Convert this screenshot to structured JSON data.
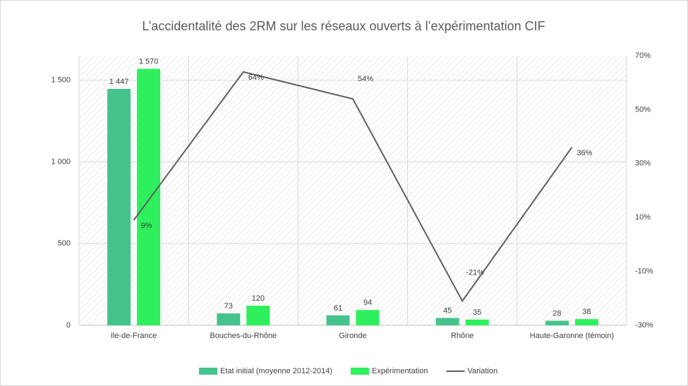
{
  "chart_data": {
    "type": "bar-line",
    "title": "L’accidentalité des 2RM sur les réseaux ouverts à l’expérimentation CIF",
    "categories": [
      "Ile-de-France",
      "Bouches-du-Rhône",
      "Gironde",
      "Rhône",
      "Haute-Garonne (témoin)"
    ],
    "series": [
      {
        "name": "Etat initial (moyenne 2012-2014)",
        "type": "bar",
        "color": "#45c38c",
        "values": [
          1447,
          73,
          61,
          45,
          28
        ],
        "value_labels": [
          "1 447",
          "73",
          "61",
          "45",
          "28"
        ]
      },
      {
        "name": "Expérimentation",
        "type": "bar",
        "color": "#2ef05c",
        "values": [
          1570,
          120,
          94,
          35,
          38
        ],
        "value_labels": [
          "1 570",
          "120",
          "94",
          "35",
          "38"
        ]
      },
      {
        "name": "Variation",
        "type": "line",
        "axis": "y2",
        "color": "#5f5f5f",
        "values": [
          9,
          64,
          54,
          -21,
          36
        ],
        "value_labels": [
          "9%",
          "64%",
          "54%",
          "-21%",
          "36%"
        ]
      }
    ],
    "ylim": [
      0,
      1650
    ],
    "yticks": [
      0,
      500,
      {
        "value": 1000,
        "label": "1 000"
      },
      {
        "value": 1500,
        "label": "1 500"
      }
    ],
    "y2lim": [
      -30,
      70
    ],
    "y2ticks": [
      {
        "value": -30,
        "label": "-30%"
      },
      {
        "value": -10,
        "label": "-10%"
      },
      {
        "value": 10,
        "label": "10%"
      },
      {
        "value": 30,
        "label": "30%"
      },
      {
        "value": 50,
        "label": "50%"
      },
      {
        "value": 70,
        "label": "70%"
      }
    ],
    "grid": true
  }
}
